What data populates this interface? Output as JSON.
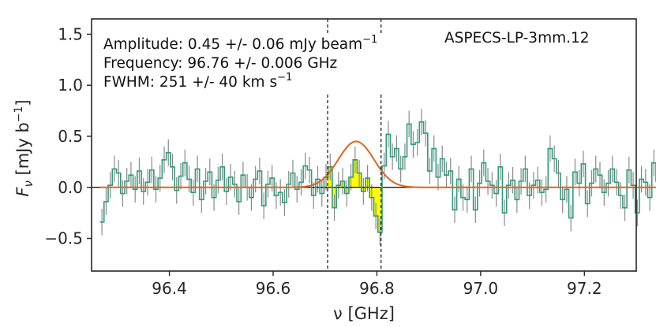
{
  "chart_data": {
    "type": "line",
    "title": "",
    "xlabel": "ν [GHz]",
    "ylabel_main": "F",
    "ylabel_sub": "ν",
    "ylabel_units": " [mJy b",
    "ylabel_units_sup": "−1",
    "ylabel_close": "]",
    "xlim": [
      96.25,
      97.3
    ],
    "ylim": [
      -0.82,
      1.65
    ],
    "xticks": [
      96.4,
      96.6,
      96.8,
      97.0,
      97.2
    ],
    "xtick_labels": [
      "96.4",
      "96.6",
      "96.8",
      "97.0",
      "97.2"
    ],
    "yticks": [
      -0.5,
      0.0,
      0.5,
      1.0,
      1.5
    ],
    "ytick_labels": [
      "−0.5",
      "0.0",
      "0.5",
      "1.0",
      "1.5"
    ],
    "annotations": {
      "amplitude": "Amplitude: 0.45 +/- 0.06 mJy beam",
      "amplitude_sup": "−1",
      "frequency": "Frequency: 96.76 +/- 0.006 GHz",
      "fwhm": "FWHM: 251 +/- 40 km s",
      "fwhm_sup": "−1",
      "source": "ASPECS-LP-3mm.12"
    },
    "line_window_ghz": [
      96.705,
      96.808
    ],
    "gaussian_fit": {
      "amplitude": 0.45,
      "center_ghz": 96.76,
      "sigma_ghz": 0.0344
    },
    "spectrum": {
      "x_start": 96.27,
      "x_step": 0.008,
      "flux": [
        -0.34,
        -0.14,
        0.02,
        0.18,
        0.14,
        -0.06,
        0.06,
        0.12,
        -0.02,
        0.16,
        -0.04,
        0.05,
        0.17,
        -0.02,
        0.09,
        0.27,
        0.34,
        0.2,
        -0.03,
        0.11,
        0.24,
        0.08,
        -0.05,
        0.18,
        -0.12,
        0.06,
        0.15,
        -0.1,
        0.07,
        0.2,
        -0.04,
        0.1,
        0.03,
        -0.14,
        0.12,
        0.0,
        -0.1,
        0.08,
        0.16,
        -0.18,
        0.03,
        0.09,
        -0.08,
        -0.05,
        -0.15,
        0.03,
        0.14,
        -0.02,
        0.05,
        0.21,
        0.17,
        -0.08,
        0.08,
        -0.06,
        0.1,
        0.2,
        -0.2,
        0.02,
        0.06,
        -0.06,
        0.1,
        0.27,
        0.14,
        -0.04,
        0.09,
        -0.1,
        -0.28,
        -0.44,
        0.21,
        0.52,
        0.3,
        0.38,
        0.18,
        0.3,
        0.62,
        0.42,
        0.44,
        0.64,
        0.53,
        0.16,
        0.38,
        0.1,
        0.28,
        0.12,
        0.16,
        -0.22,
        0.08,
        -0.1,
        -0.12,
        0.18,
        -0.22,
        0.04,
        0.24,
        0.06,
        0.02,
        -0.06,
        0.2,
        -0.25,
        0.02,
        0.07,
        -0.12,
        0.06,
        0.18,
        -0.08,
        0.02,
        0.07,
        -0.05,
        -0.02,
        0.38,
        0.28,
        0.14,
        -0.12,
        -0.02,
        -0.3,
        0.15,
        0.04,
        0.23,
        -0.16,
        0.04,
        0.18,
        0.12,
        -0.05,
        0.04,
        0.18,
        0.05,
        -0.08,
        -0.2,
        0.17,
        0.02,
        -0.25,
        0.08,
        0.05,
        -0.1,
        0.24,
        0.06
      ],
      "error": 0.13
    }
  }
}
